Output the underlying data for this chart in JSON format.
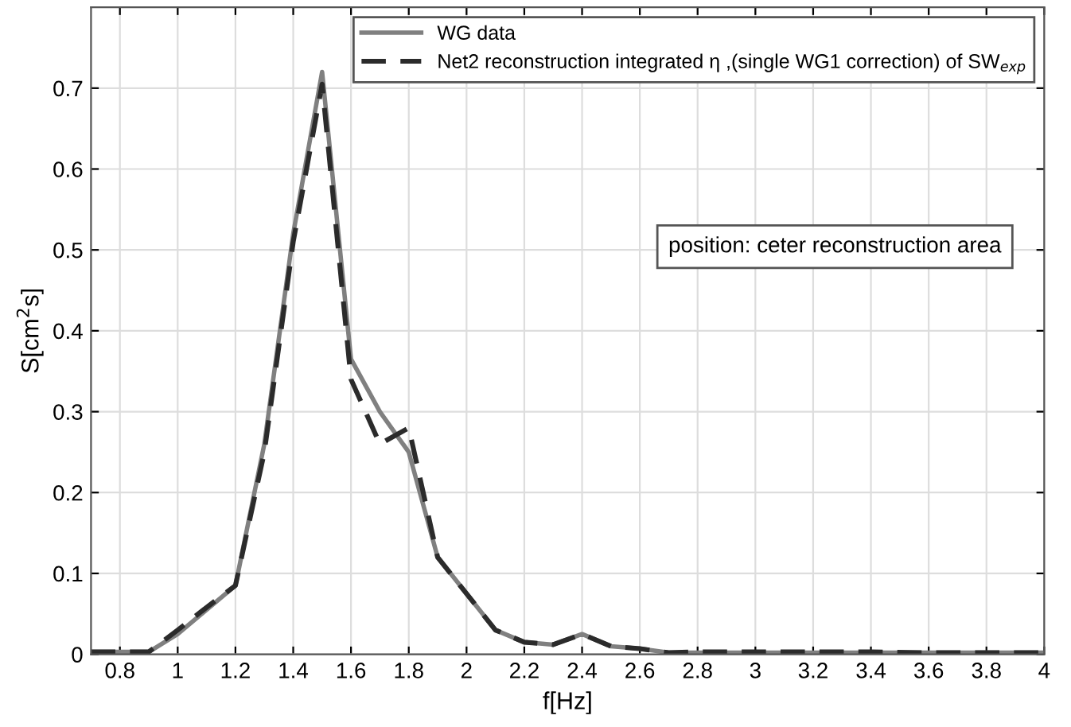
{
  "chart_data": {
    "type": "line",
    "xlabel": "f[Hz]",
    "ylabel": "S[cm$^{2}$s]",
    "annotations": [
      "position: ceter reconstruction area"
    ],
    "series": [
      {
        "name": "WG data",
        "color": "#808080",
        "line_style": "solid",
        "x": [
          0.7,
          0.8,
          0.9,
          1.0,
          1.1,
          1.2,
          1.3,
          1.4,
          1.5,
          1.6,
          1.7,
          1.8,
          1.9,
          2.0,
          2.1,
          2.2,
          2.3,
          2.4,
          2.5,
          2.6,
          2.7,
          2.8,
          3.0,
          3.2,
          3.4,
          3.6,
          3.8,
          4.0
        ],
        "values": [
          0.003,
          0.003,
          0.003,
          0.025,
          0.055,
          0.085,
          0.26,
          0.52,
          0.72,
          0.365,
          0.3,
          0.25,
          0.12,
          0.075,
          0.03,
          0.015,
          0.012,
          0.025,
          0.01,
          0.007,
          0.002,
          0.002,
          0.002,
          0.002,
          0.002,
          0.002,
          0.002,
          0.002
        ]
      },
      {
        "name": "Net2 reconstruction integrated η ,(single WG1 correction) of SW$_{exp}$",
        "color": "#2b2b2b",
        "line_style": "dashed",
        "x": [
          0.7,
          0.8,
          0.9,
          1.0,
          1.1,
          1.2,
          1.3,
          1.4,
          1.5,
          1.6,
          1.7,
          1.8,
          1.9,
          2.0,
          2.1,
          2.2,
          2.3,
          2.4,
          2.5,
          2.6,
          2.7,
          2.8,
          3.0,
          3.2,
          3.4,
          3.6,
          3.8,
          4.0
        ],
        "values": [
          0.003,
          0.003,
          0.003,
          0.03,
          0.058,
          0.085,
          0.25,
          0.51,
          0.705,
          0.34,
          0.26,
          0.28,
          0.12,
          0.075,
          0.03,
          0.015,
          0.012,
          0.025,
          0.01,
          0.007,
          0.002,
          0.003,
          0.003,
          0.003,
          0.003,
          0.002,
          0.002,
          0.002
        ]
      }
    ],
    "xlim": [
      0.7,
      4
    ],
    "xticks": [
      0.8,
      1,
      1.2,
      1.4,
      1.6,
      1.8,
      2,
      2.2,
      2.4,
      2.6,
      2.8,
      3,
      3.2,
      3.4,
      3.6,
      3.8,
      4
    ],
    "ylim": [
      0,
      0.8
    ],
    "yticks": [
      0,
      0.1,
      0.2,
      0.3,
      0.4,
      0.5,
      0.6,
      0.7
    ],
    "grid": true,
    "legend": "top right",
    "marker": "none"
  }
}
